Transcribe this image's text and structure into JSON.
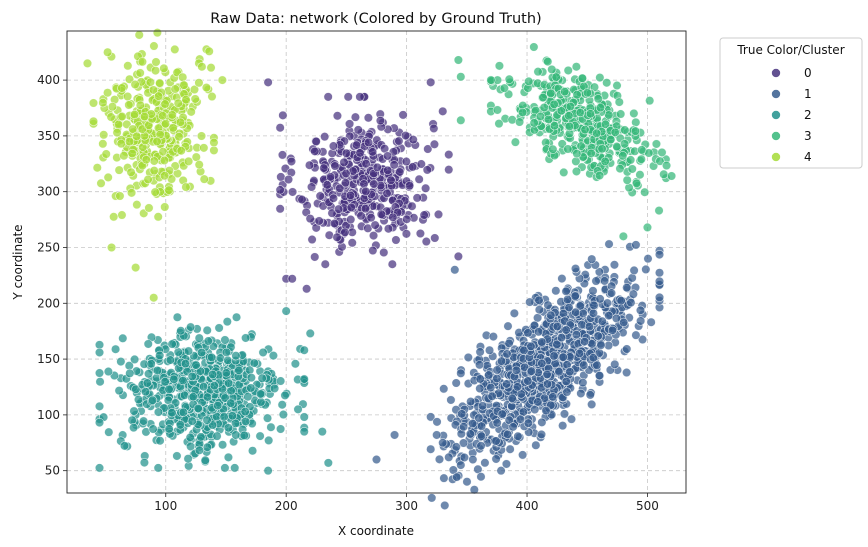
{
  "chart_data": {
    "type": "scatter",
    "title": "Raw Data: network (Colored by Ground Truth)",
    "xlabel": "X coordinate",
    "ylabel": "Y coordinate",
    "xlim": [
      18,
      532
    ],
    "ylim": [
      30,
      444
    ],
    "xticks": [
      100,
      200,
      300,
      400,
      500
    ],
    "yticks": [
      50,
      100,
      150,
      200,
      250,
      300,
      350,
      400
    ],
    "grid": true,
    "legend": {
      "title": "True Color/Cluster",
      "placement": "outside-top-right",
      "entries": [
        {
          "label": "0",
          "color": "#46327e"
        },
        {
          "label": "1",
          "color": "#365c8d"
        },
        {
          "label": "2",
          "color": "#21918c"
        },
        {
          "label": "3",
          "color": "#35b779"
        },
        {
          "label": "4",
          "color": "#a5db36"
        }
      ]
    },
    "series": [
      {
        "name": "0",
        "color": "#46327e",
        "count": 420,
        "center": [
          265,
          310
        ],
        "spread": [
          28,
          30
        ],
        "correlation": 0,
        "outliers": [
          [
            185,
            398
          ],
          [
            330,
            372
          ],
          [
            217,
            213
          ],
          [
            200,
            222
          ],
          [
            343,
            242
          ],
          [
            205,
            222
          ],
          [
            320,
            398
          ]
        ]
      },
      {
        "name": "1",
        "color": "#365c8d",
        "count": 960,
        "center": [
          415,
          145
        ],
        "spread": [
          38,
          40
        ],
        "correlation": 0.75,
        "outliers": [
          [
            275,
            60
          ],
          [
            290,
            82
          ],
          [
            335,
            62
          ],
          [
            345,
            55
          ],
          [
            330,
            75
          ],
          [
            325,
            82
          ],
          [
            355,
            60
          ],
          [
            340,
            230
          ]
        ]
      },
      {
        "name": "2",
        "color": "#21918c",
        "count": 620,
        "center": [
          130,
          120
        ],
        "spread": [
          34,
          27
        ],
        "correlation": 0,
        "outliers": [
          [
            235,
            57
          ],
          [
            215,
            85
          ],
          [
            220,
            173
          ],
          [
            200,
            193
          ],
          [
            185,
            50
          ],
          [
            230,
            85
          ]
        ]
      },
      {
        "name": "3",
        "color": "#35b779",
        "count": 420,
        "center": [
          445,
          360
        ],
        "spread": [
          30,
          25
        ],
        "correlation": -0.6,
        "outliers": [
          [
            343,
            418
          ],
          [
            345,
            403
          ],
          [
            345,
            364
          ],
          [
            500,
            268
          ],
          [
            480,
            260
          ]
        ]
      },
      {
        "name": "4",
        "color": "#a5db36",
        "count": 380,
        "center": [
          90,
          360
        ],
        "spread": [
          20,
          33
        ],
        "correlation": 0,
        "outliers": [
          [
            90,
            205
          ],
          [
            75,
            232
          ],
          [
            35,
            415
          ],
          [
            147,
            400
          ],
          [
            130,
            412
          ],
          [
            55,
            250
          ]
        ]
      }
    ]
  }
}
